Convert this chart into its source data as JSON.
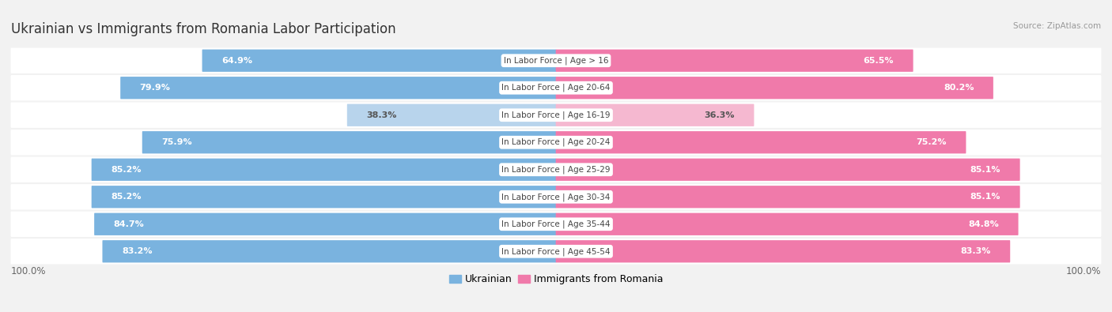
{
  "title": "Ukrainian vs Immigrants from Romania Labor Participation",
  "source": "Source: ZipAtlas.com",
  "categories": [
    "In Labor Force | Age > 16",
    "In Labor Force | Age 20-64",
    "In Labor Force | Age 16-19",
    "In Labor Force | Age 20-24",
    "In Labor Force | Age 25-29",
    "In Labor Force | Age 30-34",
    "In Labor Force | Age 35-44",
    "In Labor Force | Age 45-54"
  ],
  "ukrainian_values": [
    64.9,
    79.9,
    38.3,
    75.9,
    85.2,
    85.2,
    84.7,
    83.2
  ],
  "romania_values": [
    65.5,
    80.2,
    36.3,
    75.2,
    85.1,
    85.1,
    84.8,
    83.3
  ],
  "ukrainian_color": "#7ab3df",
  "ukraine_light_color": "#b8d4ec",
  "romania_color": "#f07aaa",
  "romania_light_color": "#f5b8d0",
  "background_color": "#f2f2f2",
  "row_bg_color": "#ffffff",
  "row_gap_color": "#e0e0e0",
  "center_label_bg": "#ffffff",
  "max_value": 100.0,
  "legend_label_ukrainian": "Ukrainian",
  "legend_label_romania": "Immigrants from Romania",
  "title_fontsize": 12,
  "label_fontsize": 8.0,
  "cat_fontsize": 7.5,
  "tick_fontsize": 8.5,
  "bottom_label": "100.0%",
  "light_threshold": 50.0
}
